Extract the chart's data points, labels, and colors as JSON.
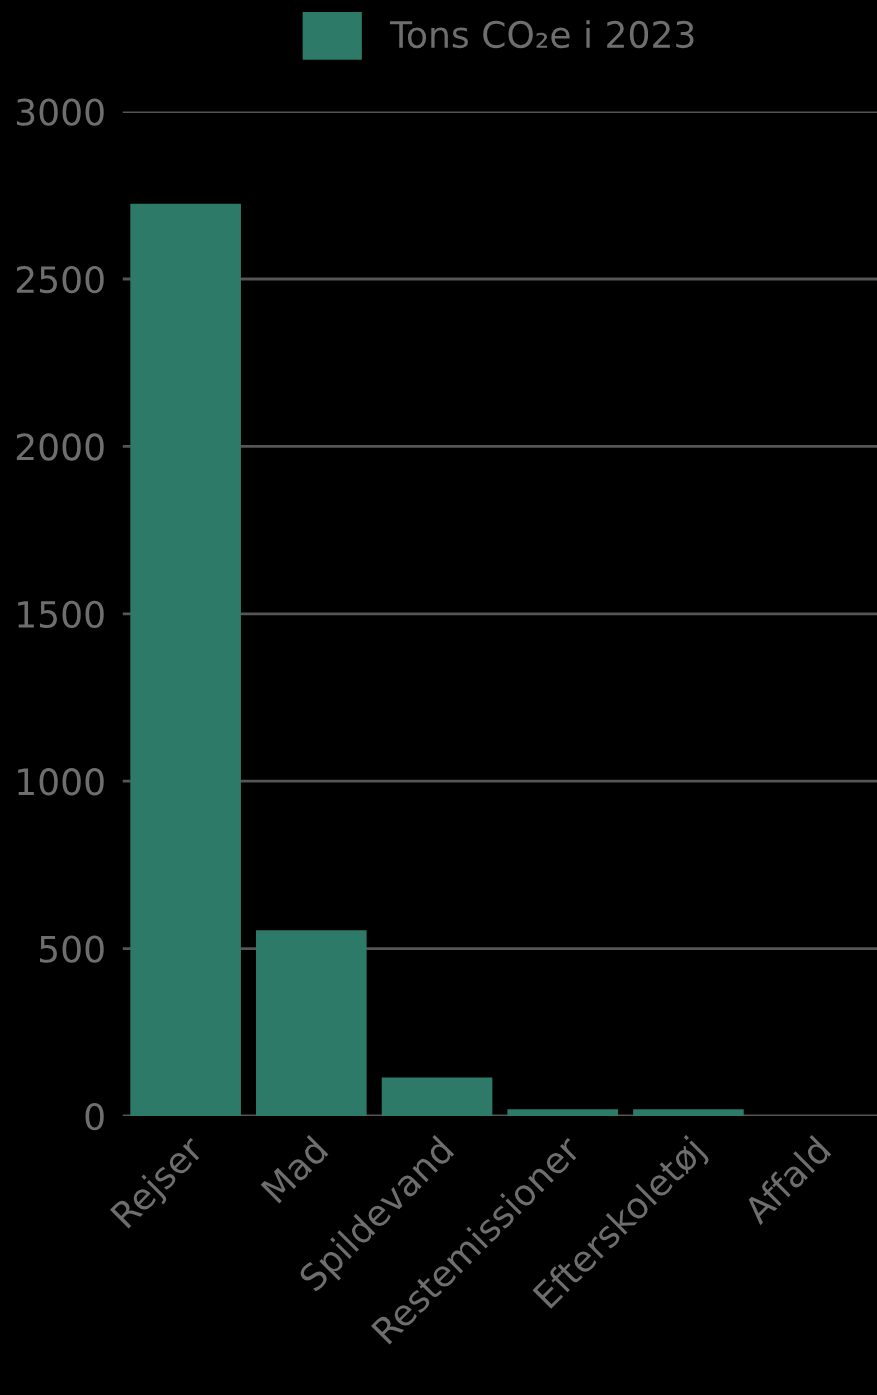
{
  "chart_data": {
    "type": "bar",
    "categories": [
      "Rejser",
      "Mad",
      "Spildevand",
      "Restemissioner",
      "Efterskoletøj",
      "Affald"
    ],
    "series": [
      {
        "name": "Tons CO₂e i 2023",
        "color": "#2e7a68",
        "values": [
          2725,
          555,
          115,
          20,
          20,
          0
        ]
      }
    ],
    "ylim": [
      0,
      3000
    ],
    "yticks": [
      0,
      500,
      1000,
      1500,
      2000,
      2500,
      3000
    ],
    "grid": "y",
    "legend": "top"
  }
}
